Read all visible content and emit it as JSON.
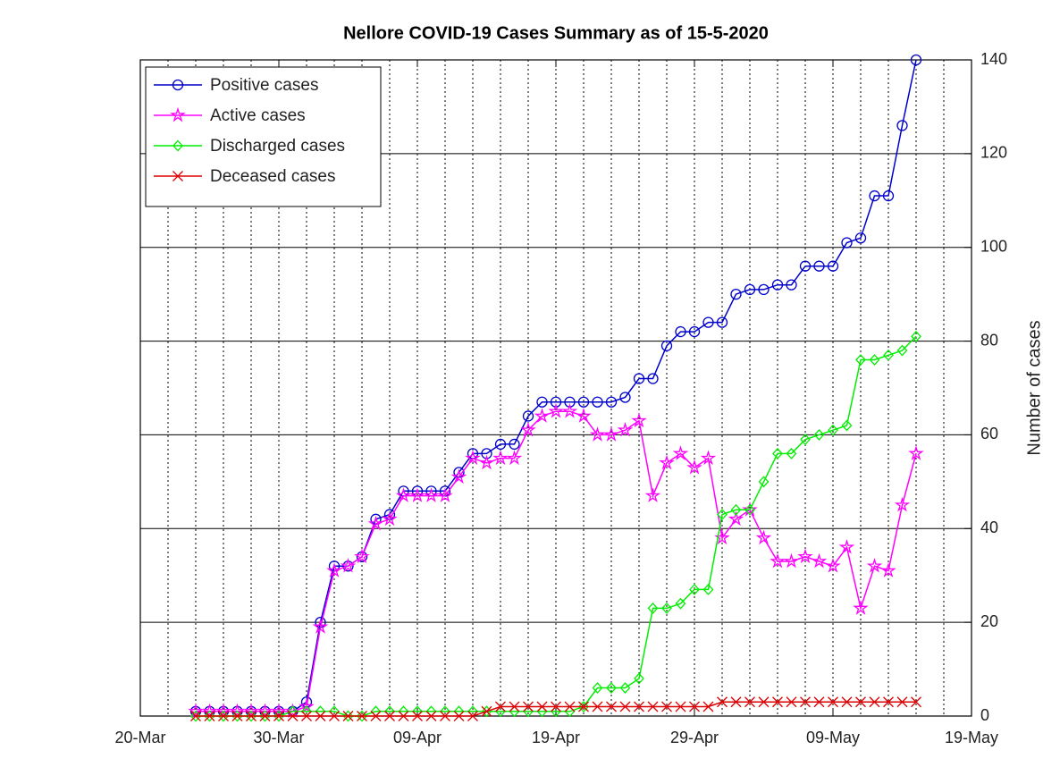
{
  "chart_data": {
    "type": "line",
    "title": "Nellore COVID-19 Cases Summary as of 15-5-2020",
    "y_label": "Number of cases",
    "y_axis_side": "right",
    "x": [
      "24-Mar",
      "25-Mar",
      "26-Mar",
      "27-Mar",
      "28-Mar",
      "29-Mar",
      "30-Mar",
      "31-Mar",
      "01-Apr",
      "02-Apr",
      "03-Apr",
      "04-Apr",
      "05-Apr",
      "06-Apr",
      "07-Apr",
      "08-Apr",
      "09-Apr",
      "10-Apr",
      "11-Apr",
      "12-Apr",
      "13-Apr",
      "14-Apr",
      "15-Apr",
      "16-Apr",
      "17-Apr",
      "18-Apr",
      "19-Apr",
      "20-Apr",
      "21-Apr",
      "22-Apr",
      "23-Apr",
      "24-Apr",
      "25-Apr",
      "26-Apr",
      "27-Apr",
      "28-Apr",
      "29-Apr",
      "30-Apr",
      "01-May",
      "02-May",
      "03-May",
      "04-May",
      "05-May",
      "06-May",
      "07-May",
      "08-May",
      "09-May",
      "10-May",
      "11-May",
      "12-May",
      "13-May",
      "14-May",
      "15-May"
    ],
    "xlim": [
      "20-Mar",
      "19-May"
    ],
    "xticks": [
      "20-Mar",
      "30-Mar",
      "09-Apr",
      "19-Apr",
      "29-Apr",
      "09-May",
      "19-May"
    ],
    "ylim": [
      0,
      140
    ],
    "yticks": [
      0,
      20,
      40,
      60,
      80,
      100,
      120,
      140
    ],
    "grid": true,
    "legend": "upper left",
    "series": [
      {
        "name": "Positive cases",
        "color": "#0000cc",
        "marker": "circle",
        "values": [
          1,
          1,
          1,
          1,
          1,
          1,
          1,
          1,
          3,
          20,
          32,
          32,
          34,
          42,
          43,
          48,
          48,
          48,
          48,
          52,
          56,
          56,
          58,
          58,
          64,
          67,
          67,
          67,
          67,
          67,
          67,
          68,
          72,
          72,
          79,
          82,
          82,
          84,
          84,
          90,
          91,
          91,
          92,
          92,
          96,
          96,
          96,
          101,
          102,
          111,
          111,
          126,
          140
        ]
      },
      {
        "name": "Active cases",
        "color": "#ff00ff",
        "marker": "star",
        "values": [
          1,
          1,
          1,
          1,
          1,
          1,
          1,
          1,
          2,
          19,
          31,
          32,
          34,
          41,
          42,
          47,
          47,
          47,
          47,
          51,
          55,
          54,
          55,
          55,
          61,
          64,
          65,
          65,
          64,
          60,
          60,
          61,
          63,
          47,
          54,
          56,
          53,
          55,
          38,
          42,
          44,
          38,
          33,
          33,
          34,
          33,
          32,
          36,
          23,
          32,
          31,
          45,
          56
        ]
      },
      {
        "name": "Discharged cases",
        "color": "#00ee00",
        "marker": "diamond",
        "values": [
          0,
          0,
          0,
          0,
          0,
          0,
          0,
          1,
          1,
          1,
          1,
          0,
          0,
          1,
          1,
          1,
          1,
          1,
          1,
          1,
          1,
          1,
          1,
          1,
          1,
          1,
          1,
          1,
          2,
          6,
          6,
          6,
          8,
          23,
          23,
          24,
          27,
          27,
          43,
          44,
          44,
          50,
          56,
          56,
          59,
          60,
          61,
          62,
          76,
          76,
          77,
          78,
          81
        ]
      },
      {
        "name": "Deceased cases",
        "color": "#dd0000",
        "marker": "x",
        "values": [
          0,
          0,
          0,
          0,
          0,
          0,
          0,
          0,
          0,
          0,
          0,
          0,
          0,
          0,
          0,
          0,
          0,
          0,
          0,
          0,
          0,
          1,
          2,
          2,
          2,
          2,
          2,
          2,
          2,
          2,
          2,
          2,
          2,
          2,
          2,
          2,
          2,
          2,
          3,
          3,
          3,
          3,
          3,
          3,
          3,
          3,
          3,
          3,
          3,
          3,
          3,
          3,
          3
        ]
      }
    ]
  }
}
